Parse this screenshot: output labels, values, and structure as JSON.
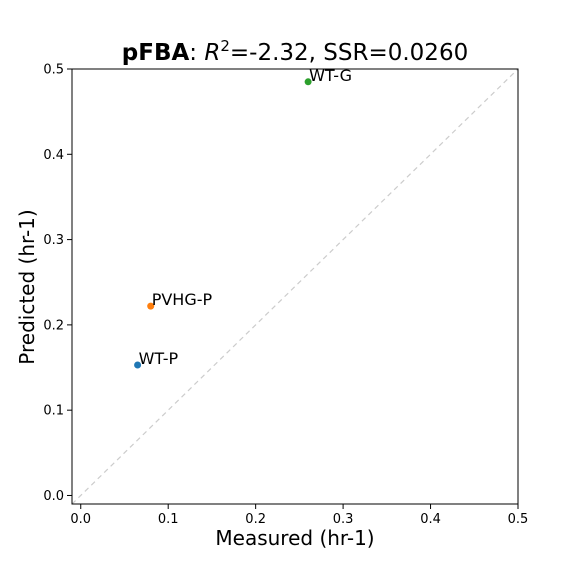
{
  "chart_data": {
    "type": "scatter",
    "title": {
      "method": "pFBA",
      "r2_label": "R",
      "r2_exponent": "2",
      "rest": "=-2.32, SSR=0.0260"
    },
    "xlabel": "Measured (hr-1)",
    "ylabel": "Predicted (hr-1)",
    "xlim": [
      -0.01,
      0.5
    ],
    "ylim": [
      -0.01,
      0.5
    ],
    "xticks": [
      0.0,
      0.1,
      0.2,
      0.3,
      0.4,
      0.5
    ],
    "xtick_labels": [
      "0.0",
      "0.1",
      "0.2",
      "0.3",
      "0.4",
      "0.5"
    ],
    "yticks": [
      0.0,
      0.1,
      0.2,
      0.3,
      0.4,
      0.5
    ],
    "ytick_labels": [
      "0.0",
      "0.1",
      "0.2",
      "0.3",
      "0.4",
      "0.5"
    ],
    "grid": false,
    "identity_line": true,
    "points": [
      {
        "label": "WT-P",
        "x": 0.065,
        "y": 0.153,
        "color": "#1f77b4"
      },
      {
        "label": "PVHG-P",
        "x": 0.08,
        "y": 0.222,
        "color": "#ff7f0e"
      },
      {
        "label": "WT-G",
        "x": 0.26,
        "y": 0.485,
        "color": "#2ca02c"
      }
    ]
  }
}
